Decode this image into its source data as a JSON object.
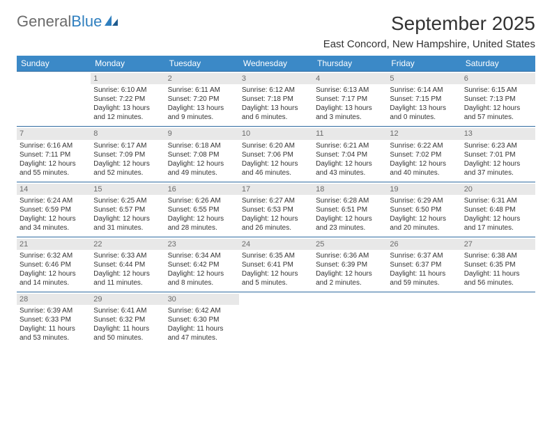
{
  "logo": {
    "part1": "General",
    "part2": "Blue"
  },
  "title": "September 2025",
  "subtitle": "East Concord, New Hampshire, United States",
  "colors": {
    "header_bg": "#3b89c7",
    "header_text": "#ffffff",
    "daynum_bg": "#e8e8e8",
    "daynum_text": "#6b6b6b",
    "week_border": "#2f6aa0",
    "text": "#333333",
    "logo_gray": "#6b6b6b",
    "logo_blue": "#2f7fbf"
  },
  "day_names": [
    "Sunday",
    "Monday",
    "Tuesday",
    "Wednesday",
    "Thursday",
    "Friday",
    "Saturday"
  ],
  "weeks": [
    [
      {
        "day": "",
        "sunrise": "",
        "sunset": "",
        "daylight1": "",
        "daylight2": ""
      },
      {
        "day": "1",
        "sunrise": "Sunrise: 6:10 AM",
        "sunset": "Sunset: 7:22 PM",
        "daylight1": "Daylight: 13 hours",
        "daylight2": "and 12 minutes."
      },
      {
        "day": "2",
        "sunrise": "Sunrise: 6:11 AM",
        "sunset": "Sunset: 7:20 PM",
        "daylight1": "Daylight: 13 hours",
        "daylight2": "and 9 minutes."
      },
      {
        "day": "3",
        "sunrise": "Sunrise: 6:12 AM",
        "sunset": "Sunset: 7:18 PM",
        "daylight1": "Daylight: 13 hours",
        "daylight2": "and 6 minutes."
      },
      {
        "day": "4",
        "sunrise": "Sunrise: 6:13 AM",
        "sunset": "Sunset: 7:17 PM",
        "daylight1": "Daylight: 13 hours",
        "daylight2": "and 3 minutes."
      },
      {
        "day": "5",
        "sunrise": "Sunrise: 6:14 AM",
        "sunset": "Sunset: 7:15 PM",
        "daylight1": "Daylight: 13 hours",
        "daylight2": "and 0 minutes."
      },
      {
        "day": "6",
        "sunrise": "Sunrise: 6:15 AM",
        "sunset": "Sunset: 7:13 PM",
        "daylight1": "Daylight: 12 hours",
        "daylight2": "and 57 minutes."
      }
    ],
    [
      {
        "day": "7",
        "sunrise": "Sunrise: 6:16 AM",
        "sunset": "Sunset: 7:11 PM",
        "daylight1": "Daylight: 12 hours",
        "daylight2": "and 55 minutes."
      },
      {
        "day": "8",
        "sunrise": "Sunrise: 6:17 AM",
        "sunset": "Sunset: 7:09 PM",
        "daylight1": "Daylight: 12 hours",
        "daylight2": "and 52 minutes."
      },
      {
        "day": "9",
        "sunrise": "Sunrise: 6:18 AM",
        "sunset": "Sunset: 7:08 PM",
        "daylight1": "Daylight: 12 hours",
        "daylight2": "and 49 minutes."
      },
      {
        "day": "10",
        "sunrise": "Sunrise: 6:20 AM",
        "sunset": "Sunset: 7:06 PM",
        "daylight1": "Daylight: 12 hours",
        "daylight2": "and 46 minutes."
      },
      {
        "day": "11",
        "sunrise": "Sunrise: 6:21 AM",
        "sunset": "Sunset: 7:04 PM",
        "daylight1": "Daylight: 12 hours",
        "daylight2": "and 43 minutes."
      },
      {
        "day": "12",
        "sunrise": "Sunrise: 6:22 AM",
        "sunset": "Sunset: 7:02 PM",
        "daylight1": "Daylight: 12 hours",
        "daylight2": "and 40 minutes."
      },
      {
        "day": "13",
        "sunrise": "Sunrise: 6:23 AM",
        "sunset": "Sunset: 7:01 PM",
        "daylight1": "Daylight: 12 hours",
        "daylight2": "and 37 minutes."
      }
    ],
    [
      {
        "day": "14",
        "sunrise": "Sunrise: 6:24 AM",
        "sunset": "Sunset: 6:59 PM",
        "daylight1": "Daylight: 12 hours",
        "daylight2": "and 34 minutes."
      },
      {
        "day": "15",
        "sunrise": "Sunrise: 6:25 AM",
        "sunset": "Sunset: 6:57 PM",
        "daylight1": "Daylight: 12 hours",
        "daylight2": "and 31 minutes."
      },
      {
        "day": "16",
        "sunrise": "Sunrise: 6:26 AM",
        "sunset": "Sunset: 6:55 PM",
        "daylight1": "Daylight: 12 hours",
        "daylight2": "and 28 minutes."
      },
      {
        "day": "17",
        "sunrise": "Sunrise: 6:27 AM",
        "sunset": "Sunset: 6:53 PM",
        "daylight1": "Daylight: 12 hours",
        "daylight2": "and 26 minutes."
      },
      {
        "day": "18",
        "sunrise": "Sunrise: 6:28 AM",
        "sunset": "Sunset: 6:51 PM",
        "daylight1": "Daylight: 12 hours",
        "daylight2": "and 23 minutes."
      },
      {
        "day": "19",
        "sunrise": "Sunrise: 6:29 AM",
        "sunset": "Sunset: 6:50 PM",
        "daylight1": "Daylight: 12 hours",
        "daylight2": "and 20 minutes."
      },
      {
        "day": "20",
        "sunrise": "Sunrise: 6:31 AM",
        "sunset": "Sunset: 6:48 PM",
        "daylight1": "Daylight: 12 hours",
        "daylight2": "and 17 minutes."
      }
    ],
    [
      {
        "day": "21",
        "sunrise": "Sunrise: 6:32 AM",
        "sunset": "Sunset: 6:46 PM",
        "daylight1": "Daylight: 12 hours",
        "daylight2": "and 14 minutes."
      },
      {
        "day": "22",
        "sunrise": "Sunrise: 6:33 AM",
        "sunset": "Sunset: 6:44 PM",
        "daylight1": "Daylight: 12 hours",
        "daylight2": "and 11 minutes."
      },
      {
        "day": "23",
        "sunrise": "Sunrise: 6:34 AM",
        "sunset": "Sunset: 6:42 PM",
        "daylight1": "Daylight: 12 hours",
        "daylight2": "and 8 minutes."
      },
      {
        "day": "24",
        "sunrise": "Sunrise: 6:35 AM",
        "sunset": "Sunset: 6:41 PM",
        "daylight1": "Daylight: 12 hours",
        "daylight2": "and 5 minutes."
      },
      {
        "day": "25",
        "sunrise": "Sunrise: 6:36 AM",
        "sunset": "Sunset: 6:39 PM",
        "daylight1": "Daylight: 12 hours",
        "daylight2": "and 2 minutes."
      },
      {
        "day": "26",
        "sunrise": "Sunrise: 6:37 AM",
        "sunset": "Sunset: 6:37 PM",
        "daylight1": "Daylight: 11 hours",
        "daylight2": "and 59 minutes."
      },
      {
        "day": "27",
        "sunrise": "Sunrise: 6:38 AM",
        "sunset": "Sunset: 6:35 PM",
        "daylight1": "Daylight: 11 hours",
        "daylight2": "and 56 minutes."
      }
    ],
    [
      {
        "day": "28",
        "sunrise": "Sunrise: 6:39 AM",
        "sunset": "Sunset: 6:33 PM",
        "daylight1": "Daylight: 11 hours",
        "daylight2": "and 53 minutes."
      },
      {
        "day": "29",
        "sunrise": "Sunrise: 6:41 AM",
        "sunset": "Sunset: 6:32 PM",
        "daylight1": "Daylight: 11 hours",
        "daylight2": "and 50 minutes."
      },
      {
        "day": "30",
        "sunrise": "Sunrise: 6:42 AM",
        "sunset": "Sunset: 6:30 PM",
        "daylight1": "Daylight: 11 hours",
        "daylight2": "and 47 minutes."
      },
      {
        "day": "",
        "sunrise": "",
        "sunset": "",
        "daylight1": "",
        "daylight2": ""
      },
      {
        "day": "",
        "sunrise": "",
        "sunset": "",
        "daylight1": "",
        "daylight2": ""
      },
      {
        "day": "",
        "sunrise": "",
        "sunset": "",
        "daylight1": "",
        "daylight2": ""
      },
      {
        "day": "",
        "sunrise": "",
        "sunset": "",
        "daylight1": "",
        "daylight2": ""
      }
    ]
  ]
}
